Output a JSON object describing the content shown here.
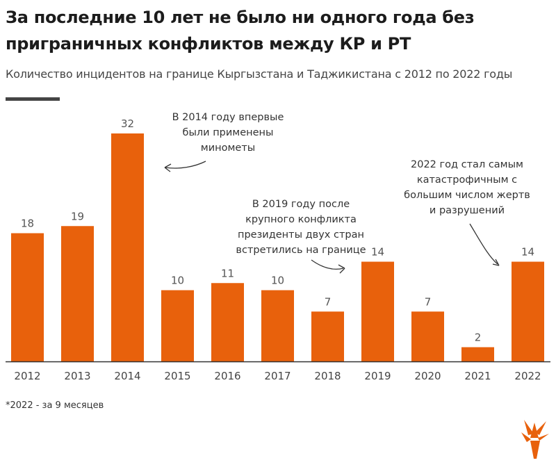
{
  "header": {
    "title_line1": "За последние 10 лет не было ни одного года без",
    "title_line2": "приграничных конфликтов между КР и РТ",
    "subtitle": "Количество инцидентов на границе Кыргызстана и Таджикистана с 2012 по 2022 годы"
  },
  "chart_data": {
    "type": "bar",
    "title": "За последние 10 лет не было ни одного года без приграничных конфликтов между КР и РТ",
    "subtitle": "Количество инцидентов на границе Кыргызстана и Таджикистана с 2012 по 2022 годы",
    "categories": [
      "2012",
      "2013",
      "2014",
      "2015",
      "2016",
      "2017",
      "2018",
      "2019",
      "2020",
      "2021",
      "2022"
    ],
    "values": [
      18,
      19,
      32,
      10,
      11,
      10,
      7,
      14,
      7,
      2,
      14
    ],
    "xlabel": "",
    "ylabel": "",
    "ylim": [
      0,
      32
    ],
    "grid": false,
    "bar_color": "#e8610c",
    "annotations": [
      {
        "category": "2014",
        "lines": [
          "В 2014 году впервые",
          "были применены",
          "минометы"
        ]
      },
      {
        "category": "2019",
        "lines": [
          "В 2019 году после",
          "крупного конфликта",
          "президенты двух стран",
          "встретились на границе"
        ]
      },
      {
        "category": "2022",
        "lines": [
          "2022 год стал самым",
          "катастрофичным с",
          "большим числом жертв",
          "и разрушений"
        ]
      }
    ]
  },
  "footnote": "*2022 - за 9 месяцев",
  "colors": {
    "accent": "#e8610c",
    "text": "#222222",
    "axis": "#333333"
  }
}
